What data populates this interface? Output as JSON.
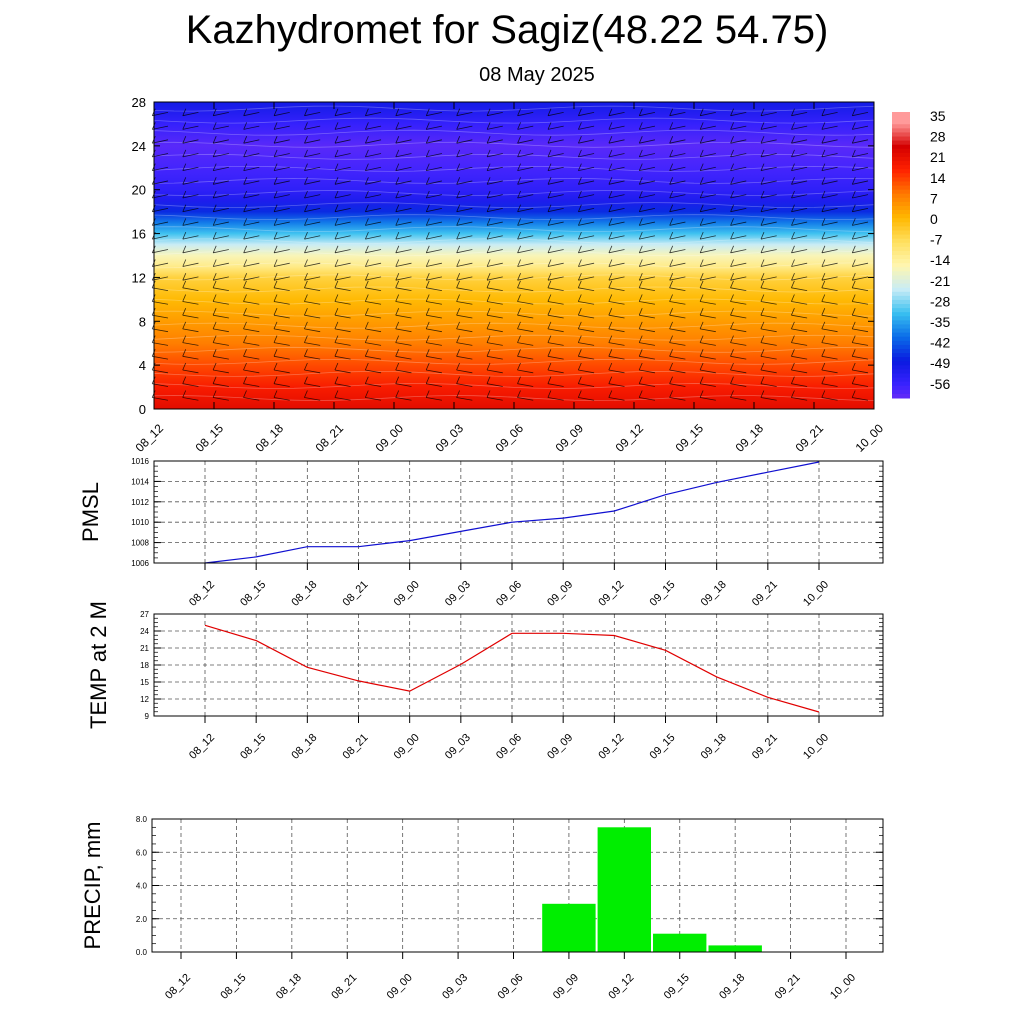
{
  "title": "Kazhydromet for Sagiz(48.22 54.75)",
  "subtitle": "08 May 2025",
  "chart_data": [
    {
      "type": "heatmap",
      "title": "Kazhydromet for Sagiz(48.22 54.75)",
      "subtitle": "08 May 2025",
      "x_ticks": [
        "08_12",
        "08_15",
        "08_18",
        "08_21",
        "09_00",
        "09_03",
        "09_06",
        "09_09",
        "09_12",
        "09_15",
        "09_18",
        "09_21",
        "10_00"
      ],
      "y_ticks": [
        0,
        4,
        8,
        12,
        16,
        20,
        24,
        28
      ],
      "ylim": [
        0,
        28
      ],
      "colorbar_labels": [
        "35",
        "28",
        "21",
        "14",
        "7",
        "0",
        "-7",
        "-14",
        "-21",
        "-28",
        "-35",
        "-42",
        "-49",
        "-56"
      ],
      "temperature_profile": {
        "heights": [
          0,
          2,
          4,
          6,
          8,
          10,
          12,
          13,
          14,
          15,
          16,
          17,
          18,
          19,
          20,
          22,
          24,
          26,
          28
        ],
        "values": [
          24,
          20,
          15,
          10,
          6,
          2,
          -3,
          -10,
          -15,
          -22,
          -30,
          -37,
          -45,
          -50,
          -53,
          -56,
          -58,
          -54,
          -48
        ]
      },
      "colors": {
        "scale": [
          "#ff9a9a",
          "#d40000",
          "#ff2200",
          "#ff7a00",
          "#ffb800",
          "#ffe060",
          "#fff6b0",
          "#c8ecf6",
          "#39c0f0",
          "#0a6ce8",
          "#0a1ae0",
          "#3a22ff",
          "#8a34f0"
        ]
      }
    },
    {
      "type": "line",
      "ylabel": "PMSL",
      "categories": [
        "08_12",
        "08_15",
        "08_18",
        "08_21",
        "09_00",
        "09_03",
        "09_06",
        "09_09",
        "09_12",
        "09_15",
        "09_18",
        "09_21",
        "10_00"
      ],
      "values": [
        1006.0,
        1006.6,
        1007.6,
        1007.6,
        1008.2,
        1009.1,
        1010.0,
        1010.4,
        1011.1,
        1012.7,
        1013.9,
        1014.9,
        1015.9
      ],
      "ylim": [
        1006,
        1016
      ],
      "y_ticks": [
        1006,
        1008,
        1010,
        1012,
        1014,
        1016
      ],
      "grid": true,
      "colors": {
        "line": "#1010d0"
      }
    },
    {
      "type": "line",
      "ylabel": "TEMP at 2 M",
      "categories": [
        "08_12",
        "08_15",
        "08_18",
        "08_21",
        "09_00",
        "09_03",
        "09_06",
        "09_09",
        "09_12",
        "09_15",
        "09_18",
        "09_21",
        "10_00"
      ],
      "values": [
        25.0,
        22.3,
        17.6,
        15.2,
        13.4,
        18.1,
        23.6,
        23.6,
        23.2,
        20.6,
        15.9,
        12.3,
        9.7
      ],
      "ylim": [
        9,
        27
      ],
      "y_ticks": [
        9,
        12,
        15,
        18,
        21,
        24,
        27
      ],
      "grid": true,
      "colors": {
        "line": "#e00000"
      }
    },
    {
      "type": "bar",
      "ylabel": "PRECIP, mm",
      "categories": [
        "08_12",
        "08_15",
        "08_18",
        "08_21",
        "09_00",
        "09_03",
        "09_06",
        "09_09",
        "09_12",
        "09_15",
        "09_18",
        "09_21",
        "10_00"
      ],
      "values": [
        0,
        0,
        0,
        0,
        0,
        0,
        0,
        2.9,
        7.5,
        1.1,
        0.4,
        0,
        0
      ],
      "ylim": [
        0,
        8
      ],
      "y_ticks": [
        "0.0",
        "2.0",
        "4.0",
        "6.0",
        "8.0"
      ],
      "grid": true,
      "colors": {
        "bar": "#00ee00"
      }
    }
  ]
}
